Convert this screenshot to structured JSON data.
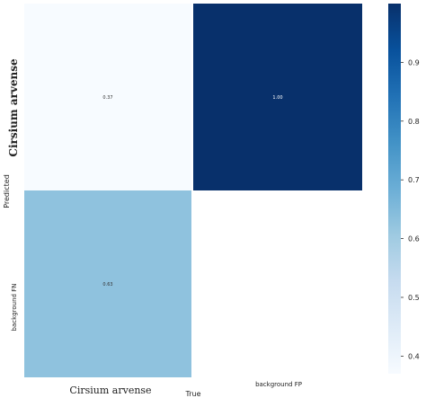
{
  "chart_data": {
    "type": "heatmap",
    "xlabel": "True",
    "ylabel": "Predicted",
    "x_categories": [
      "Cirsium arvense",
      "background FP"
    ],
    "y_categories": [
      "Cirsium arvense",
      "background FN"
    ],
    "cells": [
      [
        {
          "value": 0.37,
          "label": "0.37",
          "empty": false
        },
        {
          "value": 1.0,
          "label": "1.00",
          "empty": false
        }
      ],
      [
        {
          "value": 0.63,
          "label": "0.63",
          "empty": false
        },
        {
          "value": null,
          "label": "",
          "empty": true
        }
      ]
    ],
    "colorbar": {
      "range": [
        0.37,
        1.0
      ],
      "ticks": [
        {
          "value": 0.4,
          "label": "0.4"
        },
        {
          "value": 0.5,
          "label": "0.5"
        },
        {
          "value": 0.6,
          "label": "0.6"
        },
        {
          "value": 0.7,
          "label": "0.7"
        },
        {
          "value": 0.8,
          "label": "0.8"
        },
        {
          "value": 0.9,
          "label": "0.9"
        }
      ],
      "colors": [
        "#f7fbff",
        "#deebf7",
        "#c6dbef",
        "#9ecae1",
        "#6baed6",
        "#4292c6",
        "#2171b5",
        "#08519c",
        "#08306b"
      ]
    }
  }
}
